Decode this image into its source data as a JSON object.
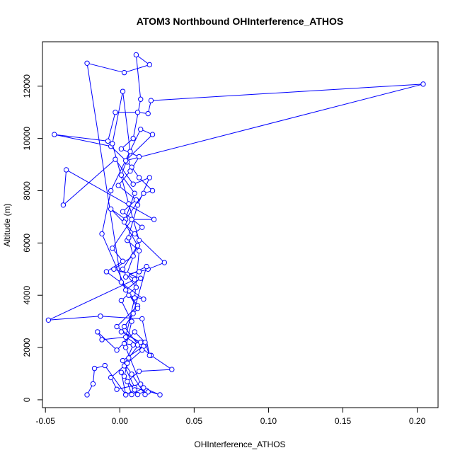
{
  "chart_data": {
    "type": "line",
    "title": "ATOM3 Northbound OHInterference_ATHOS",
    "xlabel": "OHInterference_ATHOS",
    "ylabel": "Altitude (m)",
    "xlim": [
      -0.052,
      0.214
    ],
    "ylim": [
      -300,
      13700
    ],
    "x_ticks": [
      -0.05,
      0.0,
      0.05,
      0.1,
      0.15,
      0.2
    ],
    "x_tick_labels": [
      "-0.05",
      "0.00",
      "0.05",
      "0.10",
      "0.15",
      "0.20"
    ],
    "y_ticks": [
      0,
      2000,
      4000,
      6000,
      8000,
      10000,
      12000
    ],
    "y_tick_labels": [
      "0",
      "2000",
      "4000",
      "6000",
      "8000",
      "10000",
      "12000"
    ],
    "grid": false,
    "series": [
      {
        "color": "#0000ff",
        "marker": "open-circle",
        "points": [
          [
            -0.022,
            190
          ],
          [
            -0.018,
            610
          ],
          [
            -0.017,
            1200
          ],
          [
            -0.01,
            1310
          ],
          [
            0.004,
            200
          ],
          [
            0.001,
            1050
          ],
          [
            0.012,
            200
          ],
          [
            0.018,
            350
          ],
          [
            0.027,
            190
          ],
          [
            0.016,
            460
          ],
          [
            0.008,
            200
          ],
          [
            0.005,
            700
          ],
          [
            0.013,
            1090
          ],
          [
            0.035,
            1160
          ],
          [
            0.021,
            1700
          ],
          [
            0.012,
            2100
          ],
          [
            0.004,
            2400
          ],
          [
            -0.012,
            2300
          ],
          [
            -0.015,
            2600
          ],
          [
            -0.002,
            1900
          ],
          [
            0.01,
            2600
          ],
          [
            0.017,
            2200
          ],
          [
            0.02,
            1700
          ],
          [
            0.015,
            3100
          ],
          [
            -0.013,
            3200
          ],
          [
            -0.048,
            3050
          ],
          [
            0.01,
            4600
          ],
          [
            0.005,
            4800
          ],
          [
            0.013,
            4900
          ],
          [
            0.019,
            5000
          ],
          [
            0.03,
            5250
          ],
          [
            0.01,
            6350
          ],
          [
            -0.006,
            7300
          ],
          [
            0.004,
            6900
          ],
          [
            0.016,
            7900
          ],
          [
            0.022,
            8000
          ],
          [
            0.013,
            8500
          ],
          [
            0.008,
            8900
          ],
          [
            0.005,
            9100
          ],
          [
            -0.006,
            9700
          ],
          [
            -0.044,
            10150
          ],
          [
            -0.008,
            9900
          ],
          [
            -0.003,
            11000
          ],
          [
            0.012,
            11000
          ],
          [
            0.019,
            10950
          ],
          [
            0.021,
            11450
          ],
          [
            0.204,
            12080
          ],
          [
            0.004,
            9150
          ],
          [
            0.022,
            10150
          ],
          [
            0.014,
            10350
          ],
          [
            -0.006,
            8000
          ],
          [
            -0.012,
            6350
          ],
          [
            0.006,
            4000
          ],
          [
            0.016,
            3850
          ],
          [
            -0.009,
            4900
          ],
          [
            0.002,
            5300
          ],
          [
            -0.005,
            5800
          ],
          [
            0.008,
            6900
          ],
          [
            0.023,
            6900
          ],
          [
            -0.036,
            8800
          ],
          [
            -0.038,
            7450
          ],
          [
            -0.003,
            9200
          ],
          [
            0.009,
            8250
          ],
          [
            0.02,
            8500
          ],
          [
            0.012,
            7450
          ],
          [
            0.005,
            6100
          ],
          [
            0.013,
            5700
          ],
          [
            0.01,
            3900
          ],
          [
            0.003,
            2150
          ],
          [
            0.009,
            2100
          ],
          [
            0.003,
            1300
          ],
          [
            0.01,
            470
          ],
          [
            0.019,
            300
          ],
          [
            0.017,
            200
          ],
          [
            0.008,
            980
          ],
          [
            0.002,
            1500
          ],
          [
            0.016,
            2050
          ],
          [
            -0.002,
            2800
          ],
          [
            0.012,
            3600
          ],
          [
            0.004,
            4200
          ],
          [
            0.014,
            4650
          ],
          [
            -0.004,
            5000
          ],
          [
            0.009,
            5500
          ],
          [
            0.006,
            6200
          ],
          [
            0.015,
            6600
          ],
          [
            0.002,
            7200
          ],
          [
            0.011,
            7650
          ],
          [
            -0.001,
            8200
          ],
          [
            0.007,
            8750
          ],
          [
            0.013,
            9300
          ],
          [
            0.001,
            9600
          ],
          [
            0.009,
            10000
          ],
          [
            0.014,
            11500
          ],
          [
            0.011,
            13200
          ],
          [
            0.02,
            12820
          ],
          [
            0.003,
            12520
          ],
          [
            -0.022,
            12880
          ],
          [
            0.001,
            4500
          ],
          [
            0.012,
            3500
          ],
          [
            0.003,
            2800
          ],
          [
            0.015,
            1900
          ],
          [
            0.005,
            1400
          ],
          [
            -0.006,
            850
          ],
          [
            -0.002,
            400
          ],
          [
            0.014,
            600
          ],
          [
            0.004,
            2000
          ],
          [
            0.008,
            3000
          ],
          [
            0.001,
            3800
          ],
          [
            0.011,
            4300
          ],
          [
            0.002,
            5000
          ],
          [
            0.012,
            5900
          ],
          [
            0.003,
            6800
          ],
          [
            0.01,
            7900
          ],
          [
            0.001,
            8600
          ],
          [
            0.007,
            9500
          ],
          [
            0.002,
            11800
          ],
          [
            -0.005,
            9800
          ],
          [
            0.006,
            7500
          ],
          [
            0.013,
            6100
          ],
          [
            0.004,
            4700
          ],
          [
            0.018,
            5100
          ],
          [
            0.009,
            3300
          ],
          [
            0.001,
            2600
          ],
          [
            0.014,
            2200
          ],
          [
            0.006,
            1600
          ],
          [
            0.003,
            900
          ],
          [
            0.01,
            380
          ],
          [
            0.004,
            190
          ]
        ]
      }
    ]
  }
}
